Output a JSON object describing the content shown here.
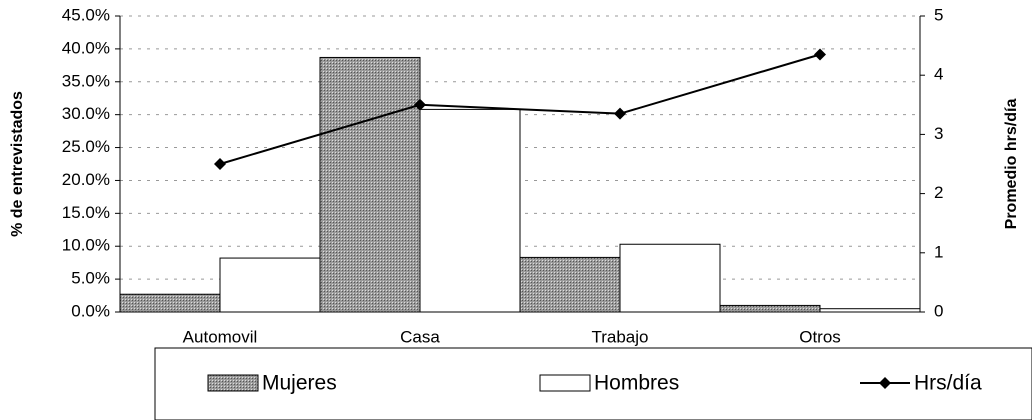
{
  "chart_data": {
    "type": "bar",
    "categories": [
      "Automovil",
      "Casa",
      "Trabajo",
      "Otros"
    ],
    "series": [
      {
        "name": "Mujeres",
        "color": "#8c8c8c",
        "values": [
          2.7,
          38.7,
          8.3,
          1.0
        ]
      },
      {
        "name": "Hombres",
        "color": "#ffffff",
        "values": [
          8.2,
          30.8,
          10.3,
          0.5
        ]
      },
      {
        "name": "Hrs/día",
        "color": "#000000",
        "axis": "y2",
        "values": [
          2.5,
          3.5,
          3.35,
          4.35
        ]
      }
    ],
    "ylabel": "% de entrevistados",
    "y2label": "Promedio hrs/día",
    "ylim": [
      0,
      45
    ],
    "yticks": [
      {
        "value": 0,
        "label": "0.0%"
      },
      {
        "value": 5,
        "label": "5.0%"
      },
      {
        "value": 10,
        "label": "10.0%"
      },
      {
        "value": 15,
        "label": "15.0%"
      },
      {
        "value": 20,
        "label": "20.0%"
      },
      {
        "value": 25,
        "label": "25.0%"
      },
      {
        "value": 30,
        "label": "30.0%"
      },
      {
        "value": 35,
        "label": "35.0%"
      },
      {
        "value": 40,
        "label": "40.0%"
      },
      {
        "value": 45,
        "label": "45.0%"
      }
    ],
    "y2lim": [
      0,
      5
    ],
    "y2ticks": [
      0,
      1,
      2,
      3,
      4,
      5
    ],
    "grid": true,
    "legend": "bottom"
  }
}
